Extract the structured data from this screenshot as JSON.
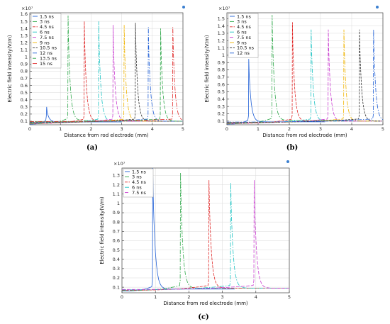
{
  "chart_data": [
    {
      "type": "line",
      "caption": "(a)",
      "multiplier": "×10⁷",
      "xlabel": "Distance from rod electrode (mm)",
      "ylabel": "Electric field intensity(V/m)",
      "xlim": [
        0,
        5
      ],
      "ylim": [
        0.05,
        1.62
      ],
      "x_ticks": [
        "0",
        "1",
        "2",
        "3",
        "4",
        "5"
      ],
      "y_ticks": [
        "0.1",
        "0.2",
        "0.3",
        "0.4",
        "0.5",
        "0.6",
        "0.7",
        "0.8",
        "0.9",
        "1",
        "1.1",
        "1.2",
        "1.3",
        "1.4",
        "1.5",
        "1.6"
      ],
      "legend_position": "top-left",
      "series": [
        {
          "name": "1.5 ns",
          "color": "#1f5fd6",
          "front_x": 0.55,
          "peak": 0.3,
          "tail": 0.09
        },
        {
          "name": "3 ns",
          "color": "#2fa84a",
          "front_x": 1.25,
          "peak": 1.58,
          "tail": 0.11
        },
        {
          "name": "4.5 ns",
          "color": "#e02828",
          "front_x": 1.78,
          "peak": 1.5,
          "tail": 0.1
        },
        {
          "name": "6 ns",
          "color": "#1cc3c3",
          "front_x": 2.25,
          "peak": 1.5,
          "tail": 0.1
        },
        {
          "name": "7.5 ns",
          "color": "#c93bd0",
          "front_x": 2.72,
          "peak": 1.45,
          "tail": 0.1
        },
        {
          "name": "9 ns",
          "color": "#f0b400",
          "front_x": 3.08,
          "peak": 1.45,
          "tail": 0.1
        },
        {
          "name": "10.5 ns",
          "color": "#303030",
          "front_x": 3.45,
          "peak": 1.48,
          "tail": 0.1
        },
        {
          "name": "12 ns",
          "color": "#1f5fd6",
          "front_x": 3.87,
          "peak": 1.42,
          "tail": 0.1
        },
        {
          "name": "13.5 ns",
          "color": "#2fa84a",
          "front_x": 4.27,
          "peak": 1.4,
          "tail": 0.1
        },
        {
          "name": "15 ns",
          "color": "#e02828",
          "front_x": 4.67,
          "peak": 1.42,
          "tail": 0.1
        }
      ]
    },
    {
      "type": "line",
      "caption": "(b)",
      "multiplier": "×10⁷",
      "xlabel": "Distance from rod electrode (mm)",
      "ylabel": "Electric field intensity(V/m)",
      "xlim": [
        0,
        5
      ],
      "ylim": [
        0.05,
        1.58
      ],
      "x_ticks": [
        "0",
        "1",
        "2",
        "3",
        "4",
        "5"
      ],
      "y_ticks": [
        "0.1",
        "0.2",
        "0.3",
        "0.4",
        "0.5",
        "0.6",
        "0.7",
        "0.8",
        "0.9",
        "1",
        "1.1",
        "1.2",
        "1.3",
        "1.4",
        "1.5"
      ],
      "legend_position": "top-left",
      "series": [
        {
          "name": "1.5 ns",
          "color": "#1f5fd6",
          "front_x": 0.7,
          "peak": 0.95,
          "tail": 0.09
        },
        {
          "name": "3 ns",
          "color": "#2fa84a",
          "front_x": 1.45,
          "peak": 1.55,
          "tail": 0.11
        },
        {
          "name": "4.5 ns",
          "color": "#e02828",
          "front_x": 2.1,
          "peak": 1.45,
          "tail": 0.1
        },
        {
          "name": "6 ns",
          "color": "#1cc3c3",
          "front_x": 2.7,
          "peak": 1.35,
          "tail": 0.1
        },
        {
          "name": "7.5 ns",
          "color": "#c93bd0",
          "front_x": 3.25,
          "peak": 1.35,
          "tail": 0.1
        },
        {
          "name": "9 ns",
          "color": "#f0b400",
          "front_x": 3.75,
          "peak": 1.35,
          "tail": 0.1
        },
        {
          "name": "10.5 ns",
          "color": "#303030",
          "front_x": 4.25,
          "peak": 1.35,
          "tail": 0.1
        },
        {
          "name": "12 ns",
          "color": "#1f5fd6",
          "front_x": 4.7,
          "peak": 1.35,
          "tail": 0.1
        }
      ]
    },
    {
      "type": "line",
      "caption": "(c)",
      "multiplier": "×10⁷",
      "xlabel": "Distance from rod electrode (mm)",
      "ylabel": "Electric field intensity(V/m)",
      "xlim": [
        0,
        5
      ],
      "ylim": [
        0.04,
        1.38
      ],
      "x_ticks": [
        "0",
        "1",
        "2",
        "3",
        "4",
        "5"
      ],
      "y_ticks": [
        "0.1",
        "0.2",
        "0.3",
        "0.4",
        "0.5",
        "0.6",
        "0.7",
        "0.8",
        "0.9",
        "1",
        "1.1",
        "1.2",
        "1.3"
      ],
      "legend_position": "top-left",
      "series": [
        {
          "name": "1.5 ns",
          "color": "#1f5fd6",
          "front_x": 0.92,
          "peak": 1.38,
          "tail": 0.08
        },
        {
          "name": "3 ns",
          "color": "#2fa84a",
          "front_x": 1.75,
          "peak": 1.33,
          "tail": 0.09
        },
        {
          "name": "4.5 ns",
          "color": "#e02828",
          "front_x": 2.6,
          "peak": 1.25,
          "tail": 0.09
        },
        {
          "name": "6 ns",
          "color": "#1cc3c3",
          "front_x": 3.25,
          "peak": 1.22,
          "tail": 0.09
        },
        {
          "name": "7.5 ns",
          "color": "#c93bd0",
          "front_x": 3.95,
          "peak": 1.25,
          "tail": 0.09
        }
      ]
    }
  ]
}
